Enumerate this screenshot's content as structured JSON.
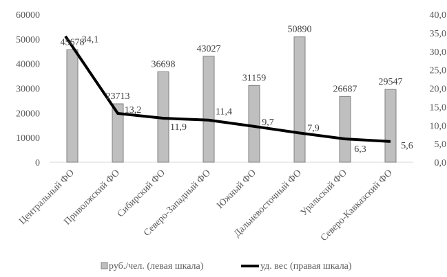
{
  "chart_data": {
    "type": "bar",
    "categories": [
      "Центральный ФО",
      "Приволжский ФО",
      "Сибирский ФО",
      "Северо-Западный ФО",
      "Южный ФО",
      "Дальневосточный ФО",
      "Уральский ФО",
      "Северо-Кавказский ФО"
    ],
    "series": [
      {
        "name": "руб./чел. (левая шкала)",
        "type": "bar",
        "axis": "left",
        "values": [
          45678,
          23713,
          36698,
          43027,
          31159,
          50890,
          26687,
          29547
        ],
        "labels": [
          "45678",
          "23713",
          "36698",
          "43027",
          "31159",
          "50890",
          "26687",
          "29547"
        ],
        "color": "#bfbfbf",
        "border_color": "#7f7f7f"
      },
      {
        "name": "уд. вес (правая шкала)",
        "type": "line",
        "axis": "right",
        "values": [
          34.1,
          13.2,
          11.9,
          11.4,
          9.7,
          7.9,
          6.3,
          5.6
        ],
        "labels": [
          "34,1",
          "13,2",
          "11,9",
          "11,4",
          "9,7",
          "7,9",
          "6,3",
          "5,6"
        ],
        "color": "#000000"
      }
    ],
    "y_left": {
      "range": [
        0,
        60000
      ],
      "ticks": [
        "0",
        "10000",
        "20000",
        "30000",
        "40000",
        "50000",
        "60000"
      ]
    },
    "y_right": {
      "range": [
        0,
        40
      ],
      "ticks": [
        "0,0",
        "5,0",
        "10,0",
        "15,0",
        "20,0",
        "25,0",
        "30,0",
        "35,0",
        "40,0"
      ]
    },
    "grid": false,
    "legend_position": "bottom",
    "category_label_rotation": "-45deg"
  }
}
